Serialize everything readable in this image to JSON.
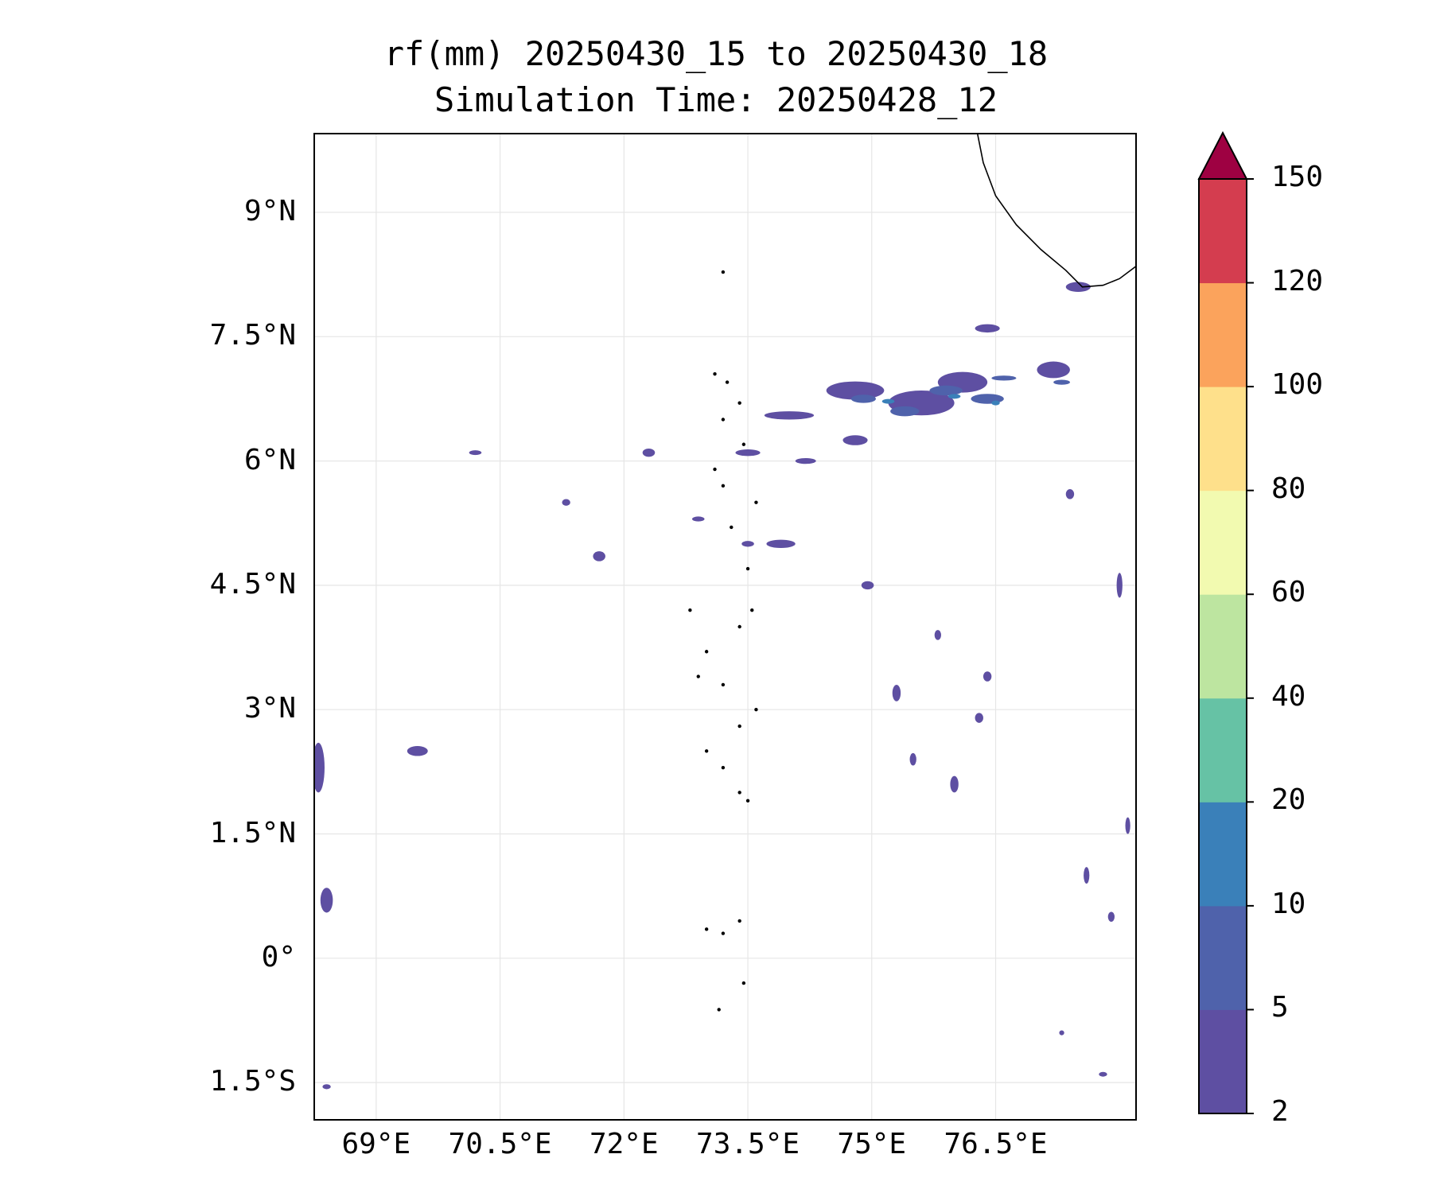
{
  "title": "rf(mm) 20250430_15 to 20250430_18",
  "subtitle": "Simulation Time: 20250428_12",
  "map": {
    "lon_range": [
      68.25,
      78.2
    ],
    "lat_range": [
      -1.95,
      9.95
    ],
    "lat_ticks": [
      {
        "value": 9,
        "label": "9°N"
      },
      {
        "value": 7.5,
        "label": "7.5°N"
      },
      {
        "value": 6,
        "label": "6°N"
      },
      {
        "value": 4.5,
        "label": "4.5°N"
      },
      {
        "value": 3,
        "label": "3°N"
      },
      {
        "value": 1.5,
        "label": "1.5°N"
      },
      {
        "value": 0,
        "label": "0°"
      },
      {
        "value": -1.5,
        "label": "1.5°S"
      }
    ],
    "lon_ticks": [
      {
        "value": 69,
        "label": "69°E"
      },
      {
        "value": 70.5,
        "label": "70.5°E"
      },
      {
        "value": 72,
        "label": "72°E"
      },
      {
        "value": 73.5,
        "label": "73.5°E"
      },
      {
        "value": 75,
        "label": "75°E"
      },
      {
        "value": 76.5,
        "label": "76.5°E"
      }
    ],
    "grid": true,
    "coastline_color": "#000000",
    "rain_cells_2_5": [
      [
        74.8,
        6.85,
        0.7,
        0.22
      ],
      [
        75.6,
        6.7,
        0.8,
        0.3
      ],
      [
        76.1,
        6.95,
        0.6,
        0.25
      ],
      [
        77.2,
        7.1,
        0.4,
        0.2
      ],
      [
        76.4,
        7.6,
        0.3,
        0.1
      ],
      [
        77.5,
        8.1,
        0.3,
        0.12
      ],
      [
        74.0,
        6.55,
        0.6,
        0.1
      ],
      [
        74.8,
        6.25,
        0.3,
        0.12
      ],
      [
        73.5,
        6.1,
        0.3,
        0.08
      ],
      [
        74.2,
        6.0,
        0.25,
        0.07
      ],
      [
        73.9,
        5.0,
        0.35,
        0.1
      ],
      [
        73.5,
        5.0,
        0.15,
        0.07
      ],
      [
        72.9,
        5.3,
        0.15,
        0.06
      ],
      [
        71.7,
        4.85,
        0.15,
        0.12
      ],
      [
        71.3,
        5.5,
        0.1,
        0.08
      ],
      [
        70.2,
        6.1,
        0.15,
        0.05
      ],
      [
        72.3,
        6.1,
        0.15,
        0.1
      ],
      [
        69.5,
        2.5,
        0.25,
        0.12
      ],
      [
        68.3,
        2.3,
        0.15,
        0.6
      ],
      [
        68.4,
        0.7,
        0.15,
        0.3
      ],
      [
        74.95,
        4.5,
        0.15,
        0.1
      ],
      [
        75.3,
        3.2,
        0.1,
        0.2
      ],
      [
        75.5,
        2.4,
        0.08,
        0.15
      ],
      [
        76.0,
        2.1,
        0.1,
        0.2
      ],
      [
        76.4,
        3.4,
        0.1,
        0.12
      ],
      [
        76.3,
        2.9,
        0.1,
        0.12
      ],
      [
        77.6,
        1.0,
        0.07,
        0.2
      ],
      [
        78.1,
        1.6,
        0.06,
        0.2
      ],
      [
        77.9,
        0.5,
        0.08,
        0.12
      ],
      [
        77.4,
        5.6,
        0.1,
        0.12
      ],
      [
        78.0,
        4.5,
        0.07,
        0.3
      ],
      [
        75.8,
        3.9,
        0.08,
        0.12
      ],
      [
        68.4,
        -1.55,
        0.1,
        0.06
      ],
      [
        77.8,
        -1.4,
        0.1,
        0.04
      ],
      [
        77.3,
        -0.9,
        0.06,
        0.06
      ]
    ],
    "rain_cells_5_10": [
      [
        74.9,
        6.75,
        0.3,
        0.1
      ],
      [
        75.4,
        6.6,
        0.35,
        0.12
      ],
      [
        75.9,
        6.85,
        0.4,
        0.12
      ],
      [
        76.4,
        6.75,
        0.4,
        0.12
      ],
      [
        76.6,
        7.0,
        0.3,
        0.06
      ],
      [
        77.3,
        6.95,
        0.2,
        0.06
      ]
    ],
    "rain_cells_10_20": [
      [
        75.2,
        6.72,
        0.15,
        0.04
      ],
      [
        76.0,
        6.78,
        0.15,
        0.05
      ],
      [
        76.5,
        6.7,
        0.1,
        0.04
      ]
    ],
    "coastline": [
      [
        76.28,
        9.95
      ],
      [
        76.35,
        9.6
      ],
      [
        76.5,
        9.2
      ],
      [
        76.75,
        8.85
      ],
      [
        77.05,
        8.55
      ],
      [
        77.35,
        8.3
      ],
      [
        77.55,
        8.1
      ],
      [
        77.8,
        8.12
      ],
      [
        78.0,
        8.2
      ],
      [
        78.2,
        8.35
      ]
    ],
    "islands": [
      [
        73.2,
        8.28
      ],
      [
        73.1,
        7.05
      ],
      [
        73.25,
        6.95
      ],
      [
        73.4,
        6.7
      ],
      [
        73.2,
        6.5
      ],
      [
        73.45,
        6.2
      ],
      [
        73.1,
        5.9
      ],
      [
        73.2,
        5.7
      ],
      [
        73.6,
        5.5
      ],
      [
        73.3,
        5.2
      ],
      [
        73.5,
        4.7
      ],
      [
        73.55,
        4.2
      ],
      [
        73.4,
        4.0
      ],
      [
        73.0,
        3.7
      ],
      [
        73.2,
        3.3
      ],
      [
        73.4,
        2.8
      ],
      [
        73.0,
        2.5
      ],
      [
        73.2,
        2.3
      ],
      [
        73.4,
        2.0
      ],
      [
        73.5,
        1.9
      ],
      [
        73.0,
        0.35
      ],
      [
        73.2,
        0.3
      ],
      [
        73.4,
        0.45
      ],
      [
        73.45,
        -0.3
      ],
      [
        73.15,
        -0.62
      ],
      [
        72.9,
        3.4
      ],
      [
        73.6,
        3.0
      ],
      [
        72.8,
        4.2
      ]
    ]
  },
  "colorbar": {
    "boundaries": [
      2,
      5,
      10,
      20,
      40,
      60,
      80,
      100,
      120,
      150
    ],
    "labels": [
      "2",
      "5",
      "10",
      "20",
      "40",
      "60",
      "80",
      "100",
      "120",
      "150"
    ],
    "colors": [
      "#5e4fa2",
      "#4f62ab",
      "#3a80b9",
      "#66c2a5",
      "#bde5a0",
      "#f2fab0",
      "#fee08b",
      "#fba35c",
      "#d43d4f"
    ],
    "extend_color": "#9e0142"
  }
}
